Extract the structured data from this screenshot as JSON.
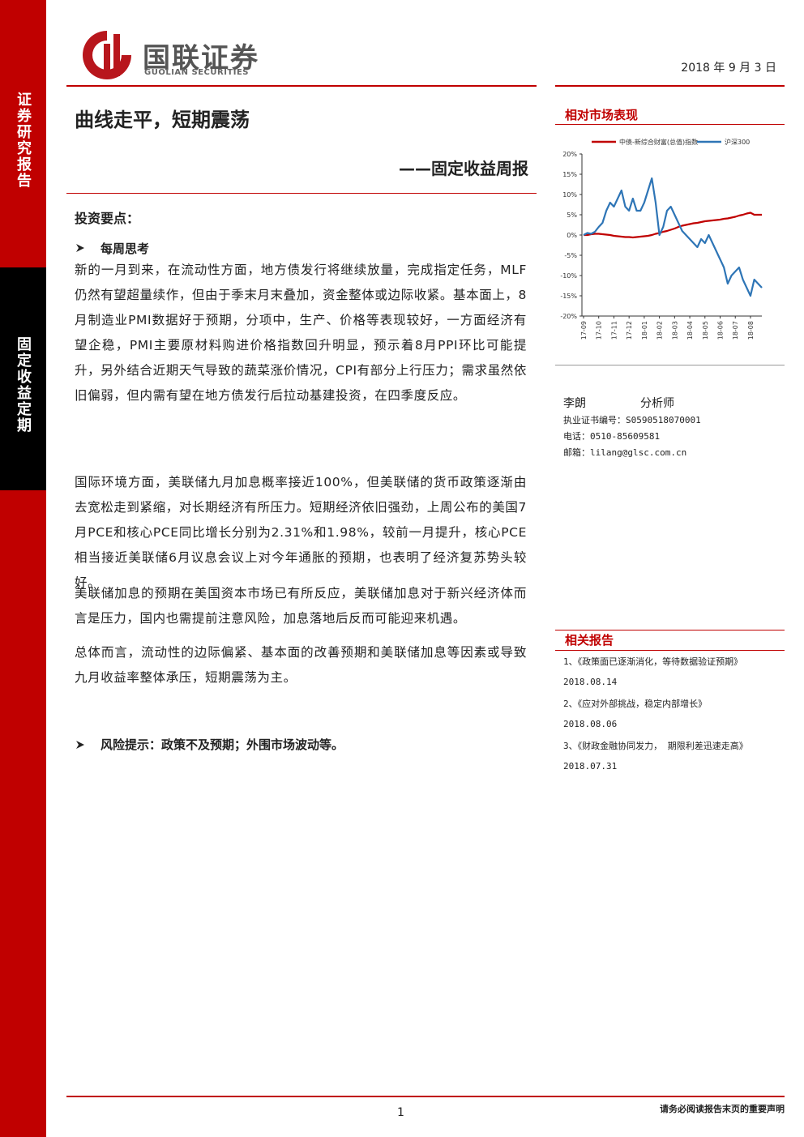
{
  "header": {
    "logo_cn": "国联证券",
    "logo_en": "GUOLIAN SECURITIES",
    "date": "2018 年 9 月 3 日"
  },
  "sidebar": {
    "top": "证券研究报告",
    "bottom": "固定收益定期"
  },
  "title": "曲线走平，短期震荡",
  "subtitle": "——固定收益周报",
  "summary": {
    "heading": "投资要点：",
    "bullet": "每周思考",
    "paragraphs": [
      "新的一月到来，在流动性方面，地方债发行将继续放量，完成指定任务，MLF仍然有望超量续作，但由于季末月末叠加，资金整体或边际收紧。基本面上，8月制造业PMI数据好于预期，分项中，生产、价格等表现较好，一方面经济有望企稳，PMI主要原材料购进价格指数回升明显，预示着8月PPI环比可能提升，另外结合近期天气导致的蔬菜涨价情况，CPI有部分上行压力；需求虽然依旧偏弱，但内需有望在地方债发行后拉动基建投资，在四季度反应。",
      "国际环境方面，美联储九月加息概率接近100%，但美联储的货币政策逐渐由去宽松走到紧缩，对长期经济有所压力。短期经济依旧强劲，上周公布的美国7月PCE和核心PCE同比增长分别为2.31%和1.98%，较前一月提升，核心PCE相当接近美联储6月议息会议上对今年通胀的预期，也表明了经济复苏势头较好。",
      "美联储加息的预期在美国资本市场已有所反应，美联储加息对于新兴经济体而言是压力，国内也需提前注意风险，加息落地后反而可能迎来机遇。",
      "总体而言，流动性的边际偏紧、基本面的改善预期和美联储加息等因素或导致九月收益率整体承压，短期震荡为主。"
    ],
    "risk": "风险提示：政策不及预期；外围市场波动等。"
  },
  "market_heading": "相对市场表现",
  "chart_data": {
    "type": "line",
    "categories": [
      "17-09",
      null,
      null,
      null,
      "17-10",
      null,
      null,
      null,
      "17-11",
      null,
      null,
      null,
      "17-12",
      null,
      null,
      null,
      "18-01",
      null,
      null,
      null,
      "18-02",
      null,
      null,
      null,
      "18-03",
      null,
      null,
      null,
      "18-04",
      null,
      null,
      null,
      "18-05",
      null,
      null,
      null,
      "18-06",
      null,
      null,
      null,
      "18-07",
      null,
      null,
      null,
      "18-08",
      null,
      null,
      null
    ],
    "series": [
      {
        "name": "中债-新综合财富(总值)指数",
        "color": "#c00000",
        "values": [
          0,
          0,
          0.2,
          0.3,
          0.3,
          0.2,
          0.1,
          0,
          -0.2,
          -0.3,
          -0.4,
          -0.5,
          -0.5,
          -0.6,
          -0.5,
          -0.4,
          -0.3,
          -0.2,
          0,
          0.3,
          0.5,
          0.8,
          1,
          1.3,
          1.6,
          2,
          2.3,
          2.5,
          2.7,
          2.9,
          3,
          3.2,
          3.4,
          3.5,
          3.6,
          3.7,
          3.8,
          4,
          4.1,
          4.3,
          4.5,
          4.8,
          5,
          5.3,
          5.5,
          5,
          5,
          5
        ]
      },
      {
        "name": "沪深300",
        "color": "#2e75b6",
        "values": [
          0,
          0.5,
          0.3,
          0.8,
          2,
          3,
          6,
          8,
          7,
          9,
          11,
          7,
          6,
          9,
          6,
          6,
          8,
          11,
          14,
          8,
          0,
          2,
          6,
          7,
          5,
          3,
          1,
          0,
          -1,
          -2,
          -3,
          -1,
          -2,
          0,
          -2,
          -4,
          -6,
          -8,
          -12,
          -10,
          -9,
          -8,
          -11,
          -13,
          -15,
          -11,
          -12,
          -13
        ]
      }
    ],
    "ylim": [
      -20,
      20
    ],
    "yticks": [
      {
        "value": 20,
        "label": "20%"
      },
      {
        "value": 15,
        "label": "15%"
      },
      {
        "value": 10,
        "label": "10%"
      },
      {
        "value": 5,
        "label": "5%"
      },
      {
        "value": 0,
        "label": "0%"
      },
      {
        "value": -5,
        "label": "-5%"
      },
      {
        "value": -10,
        "label": "-10%"
      },
      {
        "value": -15,
        "label": "-15%"
      },
      {
        "value": -20,
        "label": "-20%"
      }
    ],
    "legend": "top",
    "grid": false
  },
  "analyst": {
    "name": "李朗",
    "role": "分析师",
    "license": "执业证书编号：S0590518070001",
    "phone": "电话：0510-85609581",
    "email": "邮箱：lilang@glsc.com.cn"
  },
  "related": {
    "heading": "相关报告",
    "items": [
      {
        "title": "1、《政策面已逐渐消化，等待数据验证预期》",
        "date": "2018.08.14"
      },
      {
        "title": "2、《应对外部挑战，稳定内部增长》",
        "date": "2018.08.06"
      },
      {
        "title": "3、《财政金融协同发力， 期限利差迅速走高》",
        "date": "2018.07.31"
      }
    ]
  },
  "footer": {
    "page": "1",
    "disclaimer": "请务必阅读报告末页的重要声明"
  }
}
